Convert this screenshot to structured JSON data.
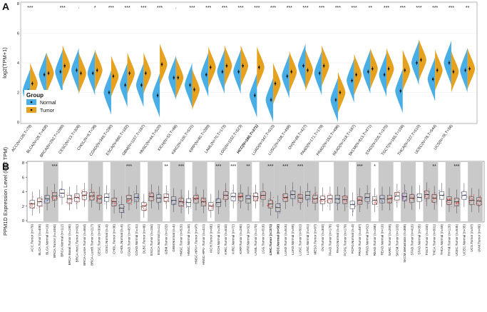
{
  "chart_data": [
    {
      "panel": "A",
      "type": "split-violin",
      "ylabel": "log2(TPM+1)",
      "ylim": [
        0,
        8
      ],
      "yticks": [
        0,
        2,
        4,
        6,
        8
      ],
      "legend": {
        "title": "Group",
        "entries": [
          "Normal",
          "Tumor"
        ],
        "colors": [
          "#4aaee6",
          "#e6a11f"
        ],
        "placement": "left"
      },
      "highlight_color": "#e8231f",
      "cancers": [
        {
          "label": "ACC(N=128,T=79)",
          "normal": 2.1,
          "tumor": 2.6,
          "sig": "***",
          "hl": false
        },
        {
          "label": "BLCA(N=28,T=408)",
          "normal": 3.2,
          "tumor": 3.3,
          "sig": "",
          "hl": false
        },
        {
          "label": "BRCA(N=292,T=1099)",
          "normal": 3.4,
          "tumor": 3.8,
          "sig": "***",
          "hl": false
        },
        {
          "label": "CESC(N=13,T=306)",
          "normal": 3.5,
          "tumor": 3.3,
          "sig": "·",
          "hl": false
        },
        {
          "label": "CHOL(N=9,T=36)",
          "normal": 3.3,
          "tumor": 3.5,
          "sig": "*",
          "hl": false
        },
        {
          "label": "COAD(N=349,T=290)",
          "normal": 2.0,
          "tumor": 3.1,
          "sig": "***",
          "hl": false
        },
        {
          "label": "ESCA(N=660,T=182)",
          "normal": 2.5,
          "tumor": 3.3,
          "sig": "***",
          "hl": false
        },
        {
          "label": "GBM(N=1157,T=167)",
          "normal": 2.5,
          "tumor": 3.3,
          "sig": "***",
          "hl": false
        },
        {
          "label": "HNSC(N=44,T=520)",
          "normal": 1.8,
          "tumor": 3.9,
          "sig": "***",
          "hl": false
        },
        {
          "label": "KICH(N=53,T=66)",
          "normal": 3.0,
          "tumor": 3.0,
          "sig": "·",
          "hl": false
        },
        {
          "label": "KIRC(N=100,T=531)",
          "normal": 2.5,
          "tumor": 2.2,
          "sig": "***",
          "hl": false
        },
        {
          "label": "KIRP(N=60,T=289)",
          "normal": 3.2,
          "tumor": 3.7,
          "sig": "***",
          "hl": false
        },
        {
          "label": "LAML(N=70,T=173)",
          "normal": 3.4,
          "tumor": 3.8,
          "sig": "***",
          "hl": false
        },
        {
          "label": "LGG(N=1152,T=523)",
          "normal": 3.4,
          "tumor": 3.8,
          "sig": "***",
          "hl": false
        },
        {
          "label": "HCC(N=160,T=371)",
          "normal": 1.8,
          "tumor": 3.7,
          "sig": "***",
          "hl": true
        },
        {
          "label": "LUAD(N=347,T=515)",
          "normal": 1.5,
          "tumor": 2.6,
          "sig": "***",
          "hl": false
        },
        {
          "label": "LUSC(N=338,T=498)",
          "normal": 3.1,
          "tumor": 3.4,
          "sig": "***",
          "hl": false
        },
        {
          "label": "OV(N=88,T=427)",
          "normal": 3.8,
          "tumor": 3.5,
          "sig": "***",
          "hl": false
        },
        {
          "label": "PAAD(N=171,T=179)",
          "normal": 3.3,
          "tumor": 3.8,
          "sig": "***",
          "hl": false
        },
        {
          "label": "PRAD(N=152,T=496)",
          "normal": 1.5,
          "tumor": 2.0,
          "sig": "***",
          "hl": false
        },
        {
          "label": "READ(N=318,T=167)",
          "normal": 2.8,
          "tumor": 3.2,
          "sig": "***",
          "hl": false
        },
        {
          "label": "SKCM(N=813,T=471)",
          "normal": 3.4,
          "tumor": 3.6,
          "sig": "**",
          "hl": false
        },
        {
          "label": "STAD(N=205,T=375)",
          "normal": 3.2,
          "tumor": 3.6,
          "sig": "***",
          "hl": false
        },
        {
          "label": "TGCT(N=165,T=156)",
          "normal": 2.1,
          "tumor": 3.5,
          "sig": "***",
          "hl": false
        },
        {
          "label": "THCA(N=337,T=510)",
          "normal": 4.0,
          "tumor": 4.2,
          "sig": "***",
          "hl": false
        },
        {
          "label": "UCEC(N=78,T=544)",
          "normal": 2.9,
          "tumor": 3.5,
          "sig": "***",
          "hl": false
        },
        {
          "label": "UCS(N=78,T=56)",
          "normal": 4.0,
          "tumor": 3.4,
          "sig": "***",
          "hl": false
        },
        {
          "label": "",
          "normal": 3.5,
          "tumor": 3.6,
          "sig": "**",
          "hl": false
        }
      ]
    },
    {
      "panel": "B",
      "type": "box-strip",
      "ylabel": "PPM1D Expression Level (log2 TPM)",
      "ylim": [
        0,
        8
      ],
      "yticks": [
        0,
        2,
        4,
        6,
        8
      ],
      "colors": {
        "tumor": "#e8231f",
        "normal": "#2b3fd6",
        "metastasis": "#9b30d9",
        "band": "#c9c9c9"
      },
      "highlight_color": "#e8231f",
      "shaded_ranges": [
        [
          2,
          3
        ],
        [
          8,
          9
        ],
        [
          11,
          12
        ],
        [
          13,
          14
        ],
        [
          16,
          17
        ],
        [
          19,
          20
        ],
        [
          22,
          23
        ],
        [
          25,
          26
        ],
        [
          28,
          29
        ],
        [
          31,
          32
        ],
        [
          33,
          34
        ],
        [
          35,
          36
        ],
        [
          37,
          38
        ],
        [
          41,
          42
        ],
        [
          44,
          45
        ],
        [
          47,
          48
        ],
        [
          50,
          51
        ],
        [
          53,
          54
        ],
        [
          56,
          57
        ],
        [
          59,
          60
        ],
        [
          62,
          63
        ]
      ],
      "groups": [
        {
          "label": "ACC.Tumor (n=79)",
          "kind": "tumor",
          "median": 2.3,
          "sig": ""
        },
        {
          "label": "BLCA.Tumor (n=408)",
          "kind": "tumor",
          "median": 2.6,
          "sig": ""
        },
        {
          "label": "BLCA.Normal (n=19)",
          "kind": "normal",
          "median": 3.0,
          "sig": ""
        },
        {
          "label": "BRCA.Tumor (n=1093)",
          "kind": "tumor",
          "median": 3.4,
          "sig": "***"
        },
        {
          "label": "BRCA.Normal (n=112)",
          "kind": "normal",
          "median": 3.8,
          "sig": ""
        },
        {
          "label": "BRCA-Basal.Tumor (n=190)",
          "kind": "tumor",
          "median": 3.0,
          "sig": ""
        },
        {
          "label": "BRCA-Her2.Tumor (n=82)",
          "kind": "tumor",
          "median": 3.2,
          "sig": ""
        },
        {
          "label": "BRCA-LumA.Tumor (n=564)",
          "kind": "tumor",
          "median": 3.5,
          "sig": ""
        },
        {
          "label": "BRCA-LumB.Tumor (n=217)",
          "kind": "tumor",
          "median": 3.4,
          "sig": ""
        },
        {
          "label": "CESC.Tumor (n=304)",
          "kind": "tumor",
          "median": 3.0,
          "sig": ""
        },
        {
          "label": "CESC.Normal (n=3)",
          "kind": "normal",
          "median": 3.2,
          "sig": ""
        },
        {
          "label": "CHOL.Tumor (n=36)",
          "kind": "tumor",
          "median": 2.6,
          "sig": ""
        },
        {
          "label": "CHOL.Normal (n=9)",
          "kind": "normal",
          "median": 1.7,
          "sig": ""
        },
        {
          "label": "COAD.Tumor (n=457)",
          "kind": "tumor",
          "median": 3.0,
          "sig": "***"
        },
        {
          "label": "COAD.Normal (n=41)",
          "kind": "normal",
          "median": 3.2,
          "sig": ""
        },
        {
          "label": "DLBC.Tumor (n=48)",
          "kind": "tumor",
          "median": 2.0,
          "sig": ""
        },
        {
          "label": "ESCA.Tumor (n=184)",
          "kind": "tumor",
          "median": 3.3,
          "sig": ""
        },
        {
          "label": "ESCA.Normal (n=11)",
          "kind": "normal",
          "median": 3.1,
          "sig": ""
        },
        {
          "label": "GBM.Tumor (n=153)",
          "kind": "tumor",
          "median": 3.2,
          "sig": "**"
        },
        {
          "label": "GBM.Normal (n=5)",
          "kind": "normal",
          "median": 2.8,
          "sig": ""
        },
        {
          "label": "HNSC.Tumor (n=520)",
          "kind": "tumor",
          "median": 2.6,
          "sig": "***"
        },
        {
          "label": "HNSC.Normal (n=44)",
          "kind": "normal",
          "median": 2.5,
          "sig": ""
        },
        {
          "label": "HNSC-HPV+.Tumor (n=97)",
          "kind": "tumor",
          "median": 3.0,
          "sig": ""
        },
        {
          "label": "HNSC-HPV-.Tumor (n=421)",
          "kind": "tumor",
          "median": 2.6,
          "sig": ""
        },
        {
          "label": "KICH.Tumor (n=66)",
          "kind": "tumor",
          "median": 2.0,
          "sig": ""
        },
        {
          "label": "KICH.Normal (n=25)",
          "kind": "normal",
          "median": 2.5,
          "sig": "***"
        },
        {
          "label": "KIRC.Tumor (n=533)",
          "kind": "tumor",
          "median": 3.5,
          "sig": ""
        },
        {
          "label": "KIRC.Normal (n=72)",
          "kind": "normal",
          "median": 3.3,
          "sig": "***"
        },
        {
          "label": "KIRP.Tumor (n=290)",
          "kind": "tumor",
          "median": 3.3,
          "sig": ""
        },
        {
          "label": "KIRP.Normal (n=32)",
          "kind": "normal",
          "median": 3.0,
          "sig": "**"
        },
        {
          "label": "LAML.Tumor (n=173)",
          "kind": "tumor",
          "median": 3.3,
          "sig": ""
        },
        {
          "label": "LGG.Tumor (n=516)",
          "kind": "tumor",
          "median": 3.5,
          "sig": ""
        },
        {
          "label": "LIHC.Tumor (n=371)",
          "kind": "tumor",
          "median": 2.3,
          "sig": "***",
          "hl": true
        },
        {
          "label": "HCC.Normal (n=50)",
          "kind": "normal",
          "median": 1.8,
          "sig": "",
          "hl": true
        },
        {
          "label": "LUAD.Tumor (n=515)",
          "kind": "tumor",
          "median": 3.2,
          "sig": "***"
        },
        {
          "label": "LUAD.Normal (n=59)",
          "kind": "normal",
          "median": 3.6,
          "sig": ""
        },
        {
          "label": "LUSC.Tumor (n=501)",
          "kind": "tumor",
          "median": 3.1,
          "sig": "***"
        },
        {
          "label": "LUSC.Normal (n=51)",
          "kind": "normal",
          "median": 3.5,
          "sig": ""
        },
        {
          "label": "MESO.Tumor (n=87)",
          "kind": "tumor",
          "median": 3.0,
          "sig": ""
        },
        {
          "label": "OV.Tumor (n=303)",
          "kind": "tumor",
          "median": 2.9,
          "sig": ""
        },
        {
          "label": "PAAD.Tumor (n=178)",
          "kind": "tumor",
          "median": 3.0,
          "sig": ""
        },
        {
          "label": "PAAD.Normal (n=4)",
          "kind": "normal",
          "median": 3.0,
          "sig": ""
        },
        {
          "label": "PCPG.Tumor (n=179)",
          "kind": "tumor",
          "median": 2.9,
          "sig": ""
        },
        {
          "label": "PCPG.Normal (n=3)",
          "kind": "normal",
          "median": 2.2,
          "sig": ""
        },
        {
          "label": "PRAD.Tumor (n=497)",
          "kind": "tumor",
          "median": 2.8,
          "sig": "***"
        },
        {
          "label": "PRAD.Normal (n=52)",
          "kind": "normal",
          "median": 3.2,
          "sig": ""
        },
        {
          "label": "READ.Tumor (n=166)",
          "kind": "tumor",
          "median": 2.8,
          "sig": "*"
        },
        {
          "label": "READ.Normal (n=10)",
          "kind": "normal",
          "median": 3.0,
          "sig": ""
        },
        {
          "label": "SARC.Tumor (n=259)",
          "kind": "tumor",
          "median": 3.0,
          "sig": ""
        },
        {
          "label": "SKCM.Tumor (n=103)",
          "kind": "tumor",
          "median": 3.4,
          "sig": ""
        },
        {
          "label": "SKCM.Metastasis (n=368)",
          "kind": "metastasis",
          "median": 3.3,
          "sig": ""
        },
        {
          "label": "STAD.Tumor (n=415)",
          "kind": "tumor",
          "median": 3.1,
          "sig": ""
        },
        {
          "label": "STAD.Normal (n=35)",
          "kind": "normal",
          "median": 3.2,
          "sig": ""
        },
        {
          "label": "TGCT.Tumor (n=150)",
          "kind": "tumor",
          "median": 3.6,
          "sig": ""
        },
        {
          "label": "THCA.Tumor (n=501)",
          "kind": "tumor",
          "median": 3.1,
          "sig": "**"
        },
        {
          "label": "THCA.Normal (n=59)",
          "kind": "normal",
          "median": 3.5,
          "sig": ""
        },
        {
          "label": "THYM.Tumor (n=120)",
          "kind": "tumor",
          "median": 2.8,
          "sig": ""
        },
        {
          "label": "UCEC.Tumor (n=545)",
          "kind": "tumor",
          "median": 2.6,
          "sig": "***"
        },
        {
          "label": "UCEC.Normal (n=35)",
          "kind": "normal",
          "median": 3.5,
          "sig": ""
        },
        {
          "label": "UCS.Tumor (n=57)",
          "kind": "tumor",
          "median": 2.8,
          "sig": ""
        },
        {
          "label": "UVM.Tumor (n=80)",
          "kind": "tumor",
          "median": 2.7,
          "sig": ""
        }
      ]
    }
  ]
}
